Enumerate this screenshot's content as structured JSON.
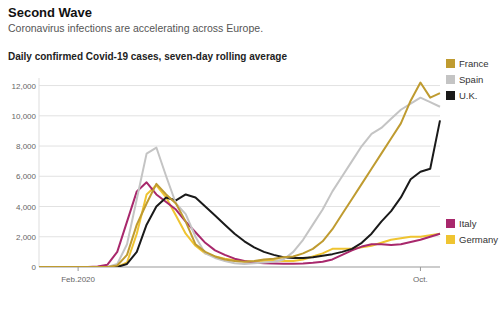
{
  "chart_data": {
    "type": "line",
    "title": "Second Wave",
    "subtitle": "Coronavirus infections are accelerating across Europe.",
    "ylabel": "Daily confirmed Covid-19 cases, seven-day rolling average",
    "categories": [
      null,
      null,
      null,
      null,
      "Feb.2020",
      null,
      null,
      null,
      null,
      null,
      null,
      null,
      null,
      null,
      null,
      null,
      null,
      null,
      null,
      null,
      null,
      null,
      null,
      null,
      null,
      null,
      null,
      null,
      null,
      null,
      null,
      null,
      null,
      null,
      null,
      null,
      null,
      null,
      null,
      "Oct.",
      null,
      null
    ],
    "series": [
      {
        "name": "France",
        "color": "#bf9b30",
        "values": [
          0,
          0,
          0,
          0,
          0,
          0,
          0,
          0,
          100,
          800,
          2800,
          4200,
          5500,
          4800,
          4200,
          3000,
          1500,
          1000,
          700,
          500,
          400,
          350,
          400,
          500,
          550,
          650,
          700,
          900,
          1200,
          1700,
          2500,
          3500,
          4500,
          5500,
          6500,
          7500,
          8500,
          9500,
          11000,
          12200,
          11200,
          11500
        ]
      },
      {
        "name": "Spain",
        "color": "#c4c4c4",
        "values": [
          0,
          0,
          0,
          0,
          0,
          0,
          0,
          0,
          200,
          1500,
          4500,
          7500,
          7900,
          6000,
          4200,
          3500,
          2000,
          900,
          600,
          400,
          250,
          200,
          250,
          300,
          350,
          500,
          1000,
          1800,
          2800,
          3800,
          5000,
          6000,
          7000,
          8000,
          8800,
          9200,
          9800,
          10400,
          10800,
          11200,
          10900,
          10600
        ]
      },
      {
        "name": "U.K.",
        "color": "#1a1a1a",
        "values": [
          0,
          0,
          0,
          0,
          0,
          0,
          0,
          0,
          0,
          200,
          1000,
          2800,
          4000,
          4600,
          4400,
          4800,
          4600,
          4000,
          3400,
          2800,
          2200,
          1700,
          1300,
          1000,
          800,
          650,
          600,
          600,
          650,
          750,
          850,
          1000,
          1200,
          1600,
          2200,
          3000,
          3700,
          4600,
          5800,
          6300,
          6500,
          9700
        ]
      },
      {
        "name": "Italy",
        "color": "#a8286c",
        "values": [
          0,
          0,
          0,
          0,
          0,
          5,
          30,
          150,
          1000,
          3000,
          5000,
          5600,
          4800,
          4300,
          3800,
          3000,
          2300,
          1600,
          1100,
          800,
          550,
          400,
          300,
          250,
          230,
          220,
          220,
          230,
          280,
          350,
          500,
          800,
          1100,
          1350,
          1500,
          1500,
          1450,
          1500,
          1650,
          1800,
          2000,
          2200
        ]
      },
      {
        "name": "Germany",
        "color": "#efc431",
        "values": [
          0,
          0,
          0,
          0,
          0,
          0,
          0,
          0,
          0,
          300,
          2200,
          4800,
          5400,
          4600,
          3400,
          2200,
          1400,
          900,
          700,
          550,
          450,
          380,
          350,
          420,
          450,
          400,
          400,
          500,
          700,
          900,
          1200,
          1200,
          1200,
          1300,
          1400,
          1600,
          1800,
          1900,
          2000,
          2000,
          2100,
          2200
        ]
      }
    ],
    "ylim": [
      0,
      12500
    ],
    "yticks": [
      0,
      {
        "value": 2000,
        "label": "2,000"
      },
      {
        "value": 4000,
        "label": "4,000"
      },
      {
        "value": 6000,
        "label": "6,000"
      },
      {
        "value": 8000,
        "label": "8,000"
      },
      {
        "value": 10000,
        "label": "10,000"
      },
      {
        "value": 12000,
        "label": "12,000"
      }
    ],
    "grid": true,
    "legend": "right"
  }
}
